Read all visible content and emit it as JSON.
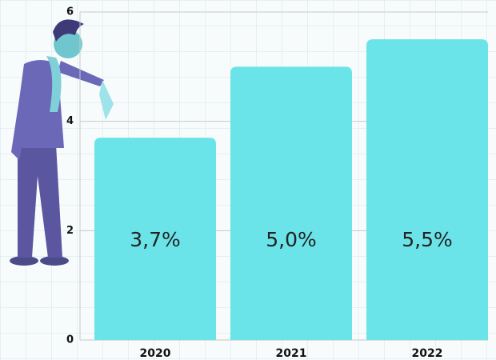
{
  "chart_data": {
    "type": "bar",
    "categories": [
      "2020",
      "2021",
      "2022"
    ],
    "values": [
      3.7,
      5.0,
      5.5
    ],
    "value_labels": [
      "3,7%",
      "5,0%",
      "5,5%"
    ],
    "color": "#6ae4e9",
    "ylim": [
      0,
      6
    ],
    "yticks": [
      0,
      2,
      4,
      6
    ],
    "grid": true
  }
}
